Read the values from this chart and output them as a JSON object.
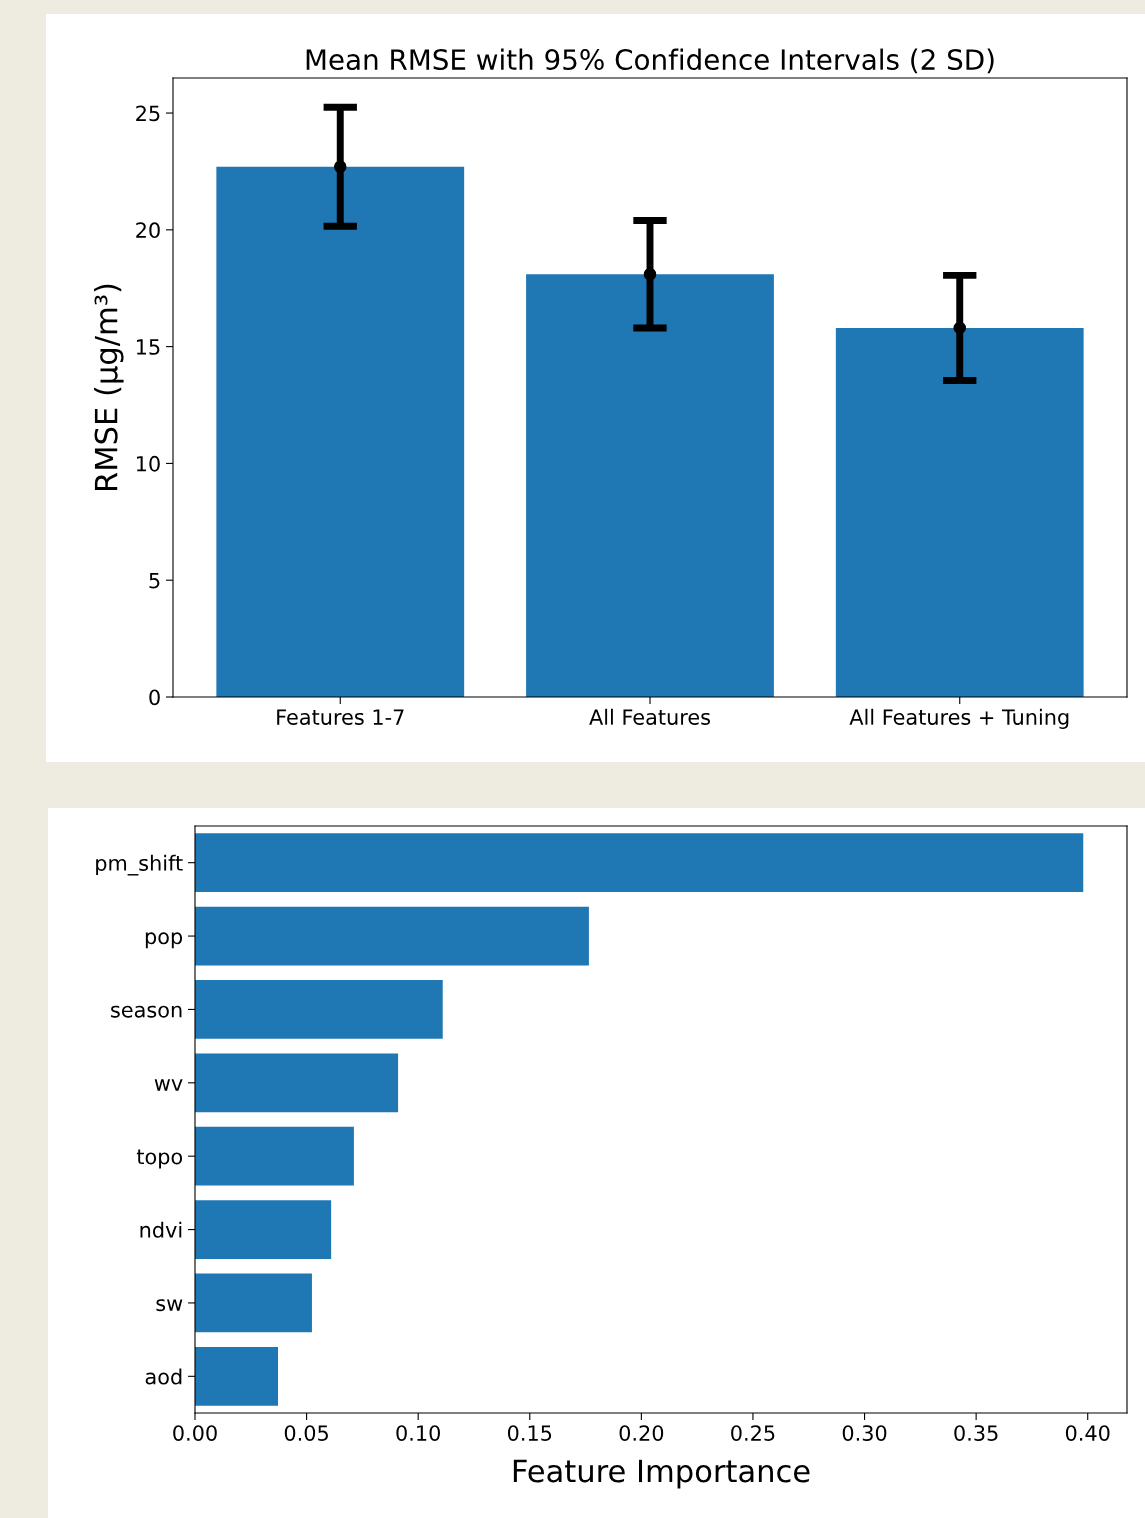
{
  "chart_data": [
    {
      "type": "bar",
      "title": "Mean RMSE with 95% Confidence Intervals (2 SD)",
      "ylabel": "RMSE (μg/m³)",
      "categories": [
        "Features 1-7",
        "All Features",
        "All Features + Tuning"
      ],
      "series": [
        {
          "type": "bar",
          "values": [
            22.7,
            18.1,
            15.8
          ],
          "errors": [
            2.55,
            2.3,
            2.25
          ],
          "color": "#1f77b4"
        },
        {
          "type": "scatter",
          "x": [
            "Features 1-7",
            "All Features",
            "All Features + Tuning"
          ],
          "values": [
            22.7,
            18.1,
            15.8
          ],
          "color": "#000000",
          "marker": "circle"
        }
      ],
      "ylim": [
        0,
        26.5
      ],
      "yticks": [
        0,
        5,
        10,
        15,
        20,
        25
      ],
      "grid": false,
      "legend": false
    },
    {
      "type": "bar",
      "orientation": "horizontal",
      "xlabel": "Feature Importance",
      "categories": [
        "pm_shift",
        "pop",
        "season",
        "wv",
        "topo",
        "ndvi",
        "sw",
        "aod"
      ],
      "values": [
        0.398,
        0.1765,
        0.111,
        0.091,
        0.0712,
        0.061,
        0.0524,
        0.0372
      ],
      "color": "#1f77b4",
      "xlim": [
        0,
        0.4176
      ],
      "xticks": [
        {
          "value": 0,
          "label": "0.00"
        },
        {
          "value": 0.05,
          "label": "0.05"
        },
        {
          "value": 0.1,
          "label": "0.10"
        },
        {
          "value": 0.15,
          "label": "0.15"
        },
        {
          "value": 0.2,
          "label": "0.20"
        },
        {
          "value": 0.25,
          "label": "0.25"
        },
        {
          "value": 0.3,
          "label": "0.30"
        },
        {
          "value": 0.35,
          "label": "0.35"
        },
        {
          "value": 0.4,
          "label": "0.40"
        }
      ],
      "grid": false,
      "legend": false
    }
  ]
}
